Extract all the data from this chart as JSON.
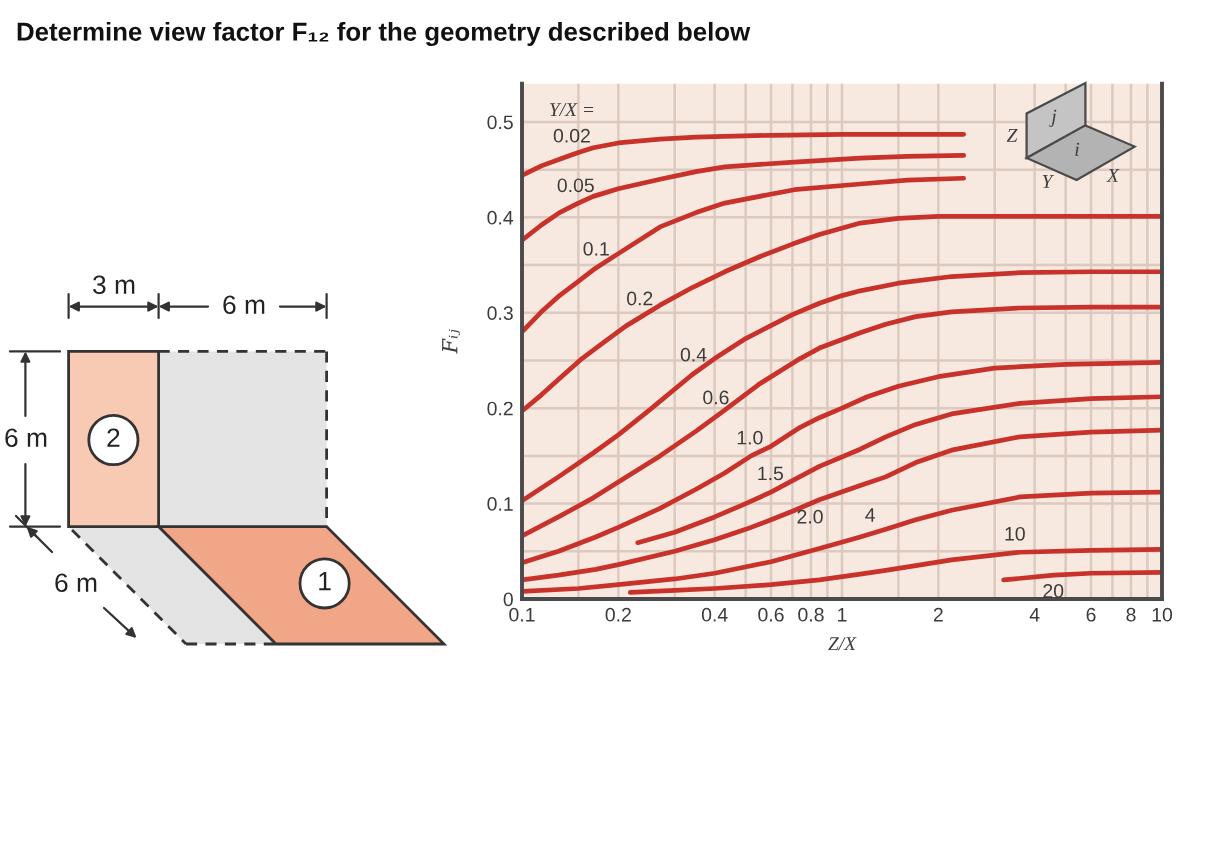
{
  "chart_data": [
    {
      "type": "line",
      "title": "Determine view factor F₁₂ for the geometry described below",
      "xlabel": "Z/X",
      "ylabel": "Fᵢⱼ",
      "legend_title": "Y/X =",
      "log": "x",
      "grid": true,
      "xlim": [
        0.1,
        10
      ],
      "ylim": [
        0,
        0.54
      ],
      "xticks": [
        0.1,
        {
          "value": 0.15,
          "label": null
        },
        0.2,
        {
          "value": 0.3,
          "label": null
        },
        0.4,
        {
          "value": 0.5,
          "label": null
        },
        0.6,
        {
          "value": 0.7,
          "label": null
        },
        0.8,
        {
          "value": 0.9,
          "label": null
        },
        1,
        {
          "value": 1.5,
          "label": null
        },
        2,
        {
          "value": 3,
          "label": null
        },
        4,
        {
          "value": 5,
          "label": null
        },
        6,
        {
          "value": 7,
          "label": null
        },
        8,
        {
          "value": 9,
          "label": null
        },
        10
      ],
      "yticks": [
        0,
        {
          "value": 0.05,
          "label": null
        },
        0.1,
        {
          "value": 0.15,
          "label": null
        },
        0.2,
        {
          "value": 0.25,
          "label": null
        },
        0.3,
        {
          "value": 0.35,
          "label": null
        },
        0.4,
        {
          "value": 0.45,
          "label": null
        },
        0.5
      ],
      "series": [
        {
          "name": "0.02",
          "color": "#c8322a",
          "x": [
            0.1,
            0.115,
            0.131,
            0.15,
            0.167,
            0.2,
            0.27,
            0.35,
            0.43,
            0.6,
            1,
            1.5,
            2.4
          ],
          "values": [
            0.444,
            0.454,
            0.461,
            0.468,
            0.473,
            0.478,
            0.482,
            0.484,
            0.485,
            0.486,
            0.487,
            0.487,
            0.487
          ]
        },
        {
          "name": "0.05",
          "color": "#c8322a",
          "x": [
            0.1,
            0.115,
            0.131,
            0.15,
            0.167,
            0.2,
            0.27,
            0.35,
            0.43,
            0.71,
            1.14,
            1.6,
            2.4
          ],
          "values": [
            0.376,
            0.392,
            0.405,
            0.415,
            0.422,
            0.43,
            0.44,
            0.448,
            0.453,
            0.458,
            0.462,
            0.464,
            0.465
          ]
        },
        {
          "name": "0.1",
          "color": "#c8322a",
          "x": [
            0.1,
            0.115,
            0.131,
            0.15,
            0.167,
            0.2,
            0.27,
            0.35,
            0.43,
            0.71,
            1.14,
            1.6,
            2.4
          ],
          "values": [
            0.28,
            0.301,
            0.318,
            0.333,
            0.345,
            0.362,
            0.39,
            0.405,
            0.415,
            0.429,
            0.435,
            0.439,
            0.441
          ]
        },
        {
          "name": "0.2",
          "color": "#c8322a",
          "x": [
            0.1,
            0.115,
            0.131,
            0.154,
            0.18,
            0.211,
            0.27,
            0.343,
            0.43,
            0.555,
            0.7,
            0.85,
            1.14,
            1.5,
            2,
            3,
            5,
            10
          ],
          "values": [
            0.197,
            0.214,
            0.231,
            0.252,
            0.269,
            0.286,
            0.308,
            0.327,
            0.343,
            0.359,
            0.372,
            0.382,
            0.394,
            0.399,
            0.401,
            0.401,
            0.401,
            0.401
          ]
        },
        {
          "name": "0.4",
          "color": "#c8322a",
          "x": [
            0.1,
            0.13,
            0.167,
            0.2,
            0.25,
            0.34,
            0.4,
            0.5,
            0.7,
            0.85,
            1,
            1.14,
            1.5,
            2.2,
            3.6,
            6,
            10
          ],
          "values": [
            0.103,
            0.128,
            0.153,
            0.172,
            0.198,
            0.235,
            0.252,
            0.273,
            0.298,
            0.31,
            0.318,
            0.323,
            0.331,
            0.338,
            0.342,
            0.343,
            0.343
          ]
        },
        {
          "name": "0.6",
          "color": "#c8322a",
          "x": [
            0.1,
            0.13,
            0.167,
            0.21,
            0.27,
            0.35,
            0.43,
            0.55,
            0.74,
            0.85,
            1.14,
            1.37,
            1.7,
            2.2,
            3.6,
            6,
            10
          ],
          "values": [
            0.066,
            0.086,
            0.106,
            0.127,
            0.15,
            0.176,
            0.198,
            0.225,
            0.252,
            0.263,
            0.279,
            0.288,
            0.296,
            0.301,
            0.305,
            0.306,
            0.306
          ]
        },
        {
          "name": "1.0",
          "color": "#c8322a",
          "x": [
            0.1,
            0.13,
            0.17,
            0.2,
            0.27,
            0.35,
            0.43,
            0.52,
            0.6,
            0.74,
            0.85,
            1,
            1.2,
            1.5,
            2,
            3,
            5,
            10
          ],
          "values": [
            0.038,
            0.05,
            0.065,
            0.075,
            0.095,
            0.115,
            0.132,
            0.15,
            0.16,
            0.18,
            0.19,
            0.2,
            0.212,
            0.223,
            0.233,
            0.242,
            0.246,
            0.248
          ]
        },
        {
          "name": "1.5",
          "color": "#c8322a",
          "x": [
            0.23,
            0.3,
            0.4,
            0.5,
            0.6,
            0.7,
            0.85,
            1.14,
            1.37,
            1.7,
            2.2,
            3.6,
            6,
            10
          ],
          "values": [
            0.059,
            0.07,
            0.086,
            0.1,
            0.112,
            0.124,
            0.139,
            0.157,
            0.17,
            0.183,
            0.194,
            0.205,
            0.21,
            0.212
          ]
        },
        {
          "name": "2.0",
          "color": "#c8322a",
          "x": [
            0.1,
            0.13,
            0.17,
            0.2,
            0.3,
            0.4,
            0.5,
            0.6,
            0.7,
            0.85,
            1.14,
            1.37,
            1.7,
            2.2,
            3.6,
            6,
            10
          ],
          "values": [
            0.02,
            0.025,
            0.031,
            0.036,
            0.05,
            0.062,
            0.073,
            0.083,
            0.092,
            0.104,
            0.119,
            0.128,
            0.143,
            0.156,
            0.17,
            0.175,
            0.177
          ]
        },
        {
          "name": "4",
          "color": "#c8322a",
          "x": [
            0.1,
            0.15,
            0.2,
            0.3,
            0.4,
            0.6,
            0.85,
            1.14,
            1.37,
            1.7,
            2.2,
            3.6,
            6,
            10
          ],
          "values": [
            0.008,
            0.011,
            0.015,
            0.021,
            0.027,
            0.039,
            0.053,
            0.065,
            0.073,
            0.083,
            0.093,
            0.107,
            0.111,
            0.112
          ]
        },
        {
          "name": "10",
          "color": "#c8322a",
          "x": [
            0.218,
            0.3,
            0.4,
            0.6,
            0.85,
            1.14,
            1.37,
            1.7,
            2.2,
            3.6,
            6,
            10
          ],
          "values": [
            0.007,
            0.009,
            0.011,
            0.015,
            0.02,
            0.026,
            0.03,
            0.035,
            0.041,
            0.049,
            0.051,
            0.052
          ]
        },
        {
          "name": "20",
          "color": "#c8322a",
          "x": [
            3.2,
            4.6,
            6,
            10
          ],
          "values": [
            0.02,
            0.025,
            0.027,
            0.028
          ]
        }
      ],
      "annotations": [
        "j",
        "Z",
        "i",
        "Y",
        "X"
      ]
    },
    {
      "type": "other",
      "annotations": [
        "3 m",
        "6 m",
        "6 m",
        "6 m",
        "2",
        "1"
      ]
    }
  ]
}
